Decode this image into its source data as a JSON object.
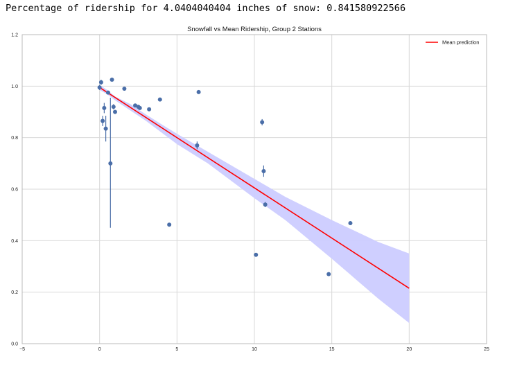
{
  "output_line": "Percentage of ridership for 4.0404040404 inches of snow: 0.841580922566",
  "chart_data": {
    "type": "scatter",
    "title": "Snowfall vs Mean Ridership, Group 2 Stations",
    "xlabel": "",
    "ylabel": "",
    "xlim": [
      -5,
      25
    ],
    "ylim": [
      0.0,
      1.2
    ],
    "x_ticks": [
      "−5",
      "0",
      "5",
      "10",
      "15",
      "20",
      "25"
    ],
    "y_ticks": [
      "0.0",
      "0.2",
      "0.4",
      "0.6",
      "0.8",
      "1.0",
      "1.2"
    ],
    "grid": true,
    "legend_position": "top-right",
    "points": [
      {
        "x": 0.0,
        "y": 0.995,
        "err": [
          0.985,
          1.005
        ]
      },
      {
        "x": 0.1,
        "y": 1.015,
        "err": [
          1.005,
          1.025
        ]
      },
      {
        "x": 0.2,
        "y": 0.865,
        "err": [
          0.845,
          0.885
        ]
      },
      {
        "x": 0.3,
        "y": 0.915,
        "err": [
          0.895,
          0.935
        ]
      },
      {
        "x": 0.4,
        "y": 0.835,
        "err": [
          0.785,
          0.885
        ]
      },
      {
        "x": 0.55,
        "y": 0.975,
        "err": [
          0.97,
          0.98
        ]
      },
      {
        "x": 0.7,
        "y": 0.7,
        "err": [
          0.45,
          0.955
        ]
      },
      {
        "x": 0.8,
        "y": 1.025,
        "err": [
          1.02,
          1.03
        ]
      },
      {
        "x": 0.9,
        "y": 0.92,
        "err": [
          0.91,
          0.93
        ]
      },
      {
        "x": 1.0,
        "y": 0.9,
        "err": [
          0.895,
          0.905
        ]
      },
      {
        "x": 1.6,
        "y": 0.99,
        "err": [
          0.985,
          0.995
        ]
      },
      {
        "x": 2.3,
        "y": 0.925,
        "err": [
          0.92,
          0.93
        ]
      },
      {
        "x": 2.5,
        "y": 0.92,
        "err": [
          0.915,
          0.925
        ]
      },
      {
        "x": 2.6,
        "y": 0.915,
        "err": [
          0.91,
          0.92
        ]
      },
      {
        "x": 3.2,
        "y": 0.91,
        "err": [
          0.905,
          0.915
        ]
      },
      {
        "x": 3.9,
        "y": 0.948,
        "err": [
          0.943,
          0.953
        ]
      },
      {
        "x": 4.5,
        "y": 0.462,
        "err": [
          0.458,
          0.466
        ]
      },
      {
        "x": 6.3,
        "y": 0.77,
        "err": [
          0.755,
          0.785
        ]
      },
      {
        "x": 6.4,
        "y": 0.977,
        "err": [
          0.97,
          0.984
        ]
      },
      {
        "x": 10.1,
        "y": 0.345,
        "err": [
          0.341,
          0.349
        ]
      },
      {
        "x": 10.5,
        "y": 0.86,
        "err": [
          0.848,
          0.872
        ]
      },
      {
        "x": 10.6,
        "y": 0.67,
        "err": [
          0.648,
          0.692
        ]
      },
      {
        "x": 10.7,
        "y": 0.54,
        "err": [
          0.53,
          0.55
        ]
      },
      {
        "x": 14.8,
        "y": 0.27,
        "err": [
          0.266,
          0.274
        ]
      },
      {
        "x": 16.2,
        "y": 0.468,
        "err": [
          0.463,
          0.473
        ]
      }
    ],
    "series": [
      {
        "name": "Mean prediction",
        "type": "line",
        "x": [
          0,
          20
        ],
        "y": [
          0.995,
          0.215
        ],
        "color": "#ff0000"
      }
    ],
    "confidence_band": {
      "x": [
        0,
        0.5,
        1,
        2,
        3,
        4,
        5,
        7,
        10,
        12,
        15,
        18,
        20
      ],
      "upper": [
        1.005,
        0.985,
        0.96,
        0.93,
        0.89,
        0.852,
        0.815,
        0.745,
        0.64,
        0.57,
        0.48,
        0.395,
        0.35
      ],
      "lower": [
        0.985,
        0.968,
        0.945,
        0.905,
        0.865,
        0.82,
        0.775,
        0.7,
        0.565,
        0.48,
        0.33,
        0.175,
        0.08
      ]
    },
    "colors": {
      "points": "#4a6ea8",
      "band": "#ccccff",
      "line": "#ff0000",
      "grid": "#d8d8d8"
    }
  }
}
